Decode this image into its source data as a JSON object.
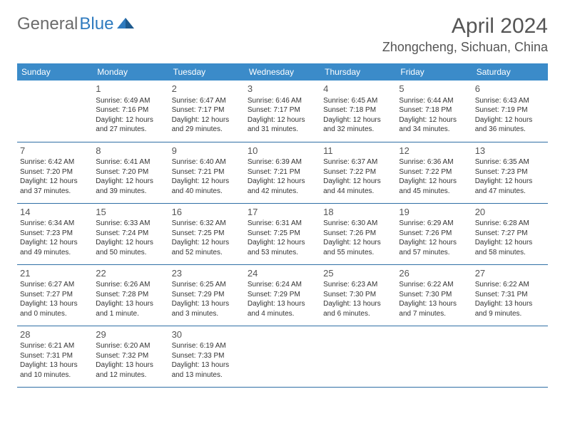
{
  "logo": {
    "part1": "General",
    "part2": "Blue"
  },
  "title": "April 2024",
  "location": "Zhongcheng, Sichuan, China",
  "day_headers": [
    "Sunday",
    "Monday",
    "Tuesday",
    "Wednesday",
    "Thursday",
    "Friday",
    "Saturday"
  ],
  "colors": {
    "header_bg": "#3b8bc9",
    "header_text": "#ffffff",
    "border": "#2f6fa5",
    "logo_gray": "#6b6b6b",
    "logo_blue": "#2f7bbf"
  },
  "weeks": [
    [
      {
        "day": "",
        "sunrise": "",
        "sunset": "",
        "daylight": ""
      },
      {
        "day": "1",
        "sunrise": "Sunrise: 6:49 AM",
        "sunset": "Sunset: 7:16 PM",
        "daylight": "Daylight: 12 hours and 27 minutes."
      },
      {
        "day": "2",
        "sunrise": "Sunrise: 6:47 AM",
        "sunset": "Sunset: 7:17 PM",
        "daylight": "Daylight: 12 hours and 29 minutes."
      },
      {
        "day": "3",
        "sunrise": "Sunrise: 6:46 AM",
        "sunset": "Sunset: 7:17 PM",
        "daylight": "Daylight: 12 hours and 31 minutes."
      },
      {
        "day": "4",
        "sunrise": "Sunrise: 6:45 AM",
        "sunset": "Sunset: 7:18 PM",
        "daylight": "Daylight: 12 hours and 32 minutes."
      },
      {
        "day": "5",
        "sunrise": "Sunrise: 6:44 AM",
        "sunset": "Sunset: 7:18 PM",
        "daylight": "Daylight: 12 hours and 34 minutes."
      },
      {
        "day": "6",
        "sunrise": "Sunrise: 6:43 AM",
        "sunset": "Sunset: 7:19 PM",
        "daylight": "Daylight: 12 hours and 36 minutes."
      }
    ],
    [
      {
        "day": "7",
        "sunrise": "Sunrise: 6:42 AM",
        "sunset": "Sunset: 7:20 PM",
        "daylight": "Daylight: 12 hours and 37 minutes."
      },
      {
        "day": "8",
        "sunrise": "Sunrise: 6:41 AM",
        "sunset": "Sunset: 7:20 PM",
        "daylight": "Daylight: 12 hours and 39 minutes."
      },
      {
        "day": "9",
        "sunrise": "Sunrise: 6:40 AM",
        "sunset": "Sunset: 7:21 PM",
        "daylight": "Daylight: 12 hours and 40 minutes."
      },
      {
        "day": "10",
        "sunrise": "Sunrise: 6:39 AM",
        "sunset": "Sunset: 7:21 PM",
        "daylight": "Daylight: 12 hours and 42 minutes."
      },
      {
        "day": "11",
        "sunrise": "Sunrise: 6:37 AM",
        "sunset": "Sunset: 7:22 PM",
        "daylight": "Daylight: 12 hours and 44 minutes."
      },
      {
        "day": "12",
        "sunrise": "Sunrise: 6:36 AM",
        "sunset": "Sunset: 7:22 PM",
        "daylight": "Daylight: 12 hours and 45 minutes."
      },
      {
        "day": "13",
        "sunrise": "Sunrise: 6:35 AM",
        "sunset": "Sunset: 7:23 PM",
        "daylight": "Daylight: 12 hours and 47 minutes."
      }
    ],
    [
      {
        "day": "14",
        "sunrise": "Sunrise: 6:34 AM",
        "sunset": "Sunset: 7:23 PM",
        "daylight": "Daylight: 12 hours and 49 minutes."
      },
      {
        "day": "15",
        "sunrise": "Sunrise: 6:33 AM",
        "sunset": "Sunset: 7:24 PM",
        "daylight": "Daylight: 12 hours and 50 minutes."
      },
      {
        "day": "16",
        "sunrise": "Sunrise: 6:32 AM",
        "sunset": "Sunset: 7:25 PM",
        "daylight": "Daylight: 12 hours and 52 minutes."
      },
      {
        "day": "17",
        "sunrise": "Sunrise: 6:31 AM",
        "sunset": "Sunset: 7:25 PM",
        "daylight": "Daylight: 12 hours and 53 minutes."
      },
      {
        "day": "18",
        "sunrise": "Sunrise: 6:30 AM",
        "sunset": "Sunset: 7:26 PM",
        "daylight": "Daylight: 12 hours and 55 minutes."
      },
      {
        "day": "19",
        "sunrise": "Sunrise: 6:29 AM",
        "sunset": "Sunset: 7:26 PM",
        "daylight": "Daylight: 12 hours and 57 minutes."
      },
      {
        "day": "20",
        "sunrise": "Sunrise: 6:28 AM",
        "sunset": "Sunset: 7:27 PM",
        "daylight": "Daylight: 12 hours and 58 minutes."
      }
    ],
    [
      {
        "day": "21",
        "sunrise": "Sunrise: 6:27 AM",
        "sunset": "Sunset: 7:27 PM",
        "daylight": "Daylight: 13 hours and 0 minutes."
      },
      {
        "day": "22",
        "sunrise": "Sunrise: 6:26 AM",
        "sunset": "Sunset: 7:28 PM",
        "daylight": "Daylight: 13 hours and 1 minute."
      },
      {
        "day": "23",
        "sunrise": "Sunrise: 6:25 AM",
        "sunset": "Sunset: 7:29 PM",
        "daylight": "Daylight: 13 hours and 3 minutes."
      },
      {
        "day": "24",
        "sunrise": "Sunrise: 6:24 AM",
        "sunset": "Sunset: 7:29 PM",
        "daylight": "Daylight: 13 hours and 4 minutes."
      },
      {
        "day": "25",
        "sunrise": "Sunrise: 6:23 AM",
        "sunset": "Sunset: 7:30 PM",
        "daylight": "Daylight: 13 hours and 6 minutes."
      },
      {
        "day": "26",
        "sunrise": "Sunrise: 6:22 AM",
        "sunset": "Sunset: 7:30 PM",
        "daylight": "Daylight: 13 hours and 7 minutes."
      },
      {
        "day": "27",
        "sunrise": "Sunrise: 6:22 AM",
        "sunset": "Sunset: 7:31 PM",
        "daylight": "Daylight: 13 hours and 9 minutes."
      }
    ],
    [
      {
        "day": "28",
        "sunrise": "Sunrise: 6:21 AM",
        "sunset": "Sunset: 7:31 PM",
        "daylight": "Daylight: 13 hours and 10 minutes."
      },
      {
        "day": "29",
        "sunrise": "Sunrise: 6:20 AM",
        "sunset": "Sunset: 7:32 PM",
        "daylight": "Daylight: 13 hours and 12 minutes."
      },
      {
        "day": "30",
        "sunrise": "Sunrise: 6:19 AM",
        "sunset": "Sunset: 7:33 PM",
        "daylight": "Daylight: 13 hours and 13 minutes."
      },
      {
        "day": "",
        "sunrise": "",
        "sunset": "",
        "daylight": ""
      },
      {
        "day": "",
        "sunrise": "",
        "sunset": "",
        "daylight": ""
      },
      {
        "day": "",
        "sunrise": "",
        "sunset": "",
        "daylight": ""
      },
      {
        "day": "",
        "sunrise": "",
        "sunset": "",
        "daylight": ""
      }
    ]
  ]
}
